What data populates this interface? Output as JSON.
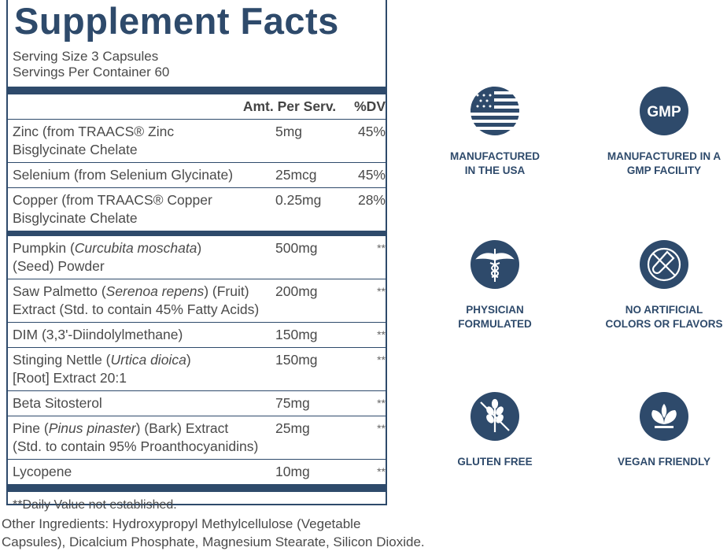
{
  "label": {
    "title": "Supplement Facts",
    "serving_size": "Serving Size 3 Capsules",
    "servings_per_container": "Servings Per Container 60",
    "header": {
      "amount": "Amt. Per Serv.",
      "dv": "%DV"
    },
    "groups": [
      [
        {
          "name": [
            [
              "Zinc (from TRAACS® Zinc"
            ],
            [
              "Bisglycinate Chelate"
            ]
          ],
          "amount": "5mg",
          "dv": "45%"
        },
        {
          "name": [
            [
              "Selenium (from Selenium Glycinate)"
            ]
          ],
          "amount": "25mcg",
          "dv": "45%"
        },
        {
          "name": [
            [
              "Copper (from TRAACS® Copper"
            ],
            [
              "Bisglycinate Chelate"
            ]
          ],
          "amount": "0.25mg",
          "dv": "28%"
        }
      ],
      [
        {
          "name": [
            [
              "Pumpkin (",
              "Curcubita moschata",
              ")"
            ],
            [
              "(Seed) Powder"
            ]
          ],
          "amount": "500mg",
          "dv": "**"
        },
        {
          "name": [
            [
              "Saw Palmetto (",
              "Serenoa repens",
              ") (Fruit)"
            ],
            [
              "Extract (Std. to contain 45% Fatty Acids)"
            ]
          ],
          "amount": "200mg",
          "dv": "**"
        },
        {
          "name": [
            [
              "DIM (3,3'-Diindolylmethane)"
            ]
          ],
          "amount": "150mg",
          "dv": "**"
        },
        {
          "name": [
            [
              "Stinging Nettle (",
              "Urtica dioica",
              ")"
            ],
            [
              "[Root] Extract 20:1"
            ]
          ],
          "amount": "150mg",
          "dv": "**"
        },
        {
          "name": [
            [
              "Beta Sitosterol"
            ]
          ],
          "amount": "75mg",
          "dv": "**"
        },
        {
          "name": [
            [
              "Pine (",
              "Pinus pinaster",
              ") (Bark) Extract"
            ],
            [
              "(Std. to contain 95% Proanthocyanidins)"
            ]
          ],
          "amount": "25mg",
          "dv": "**"
        },
        {
          "name": [
            [
              "Lycopene"
            ]
          ],
          "amount": "10mg",
          "dv": "**"
        }
      ]
    ],
    "footnote": "**Daily Value not established."
  },
  "other_ingredients": [
    "Other Ingredients: Hydroxypropyl Methylcellulose (Vegetable",
    "Capsules), Dicalcium Phosphate, Magnesium Stearate, Silicon Dioxide."
  ],
  "badges": [
    {
      "lines": [
        "MANUFACTURED",
        "IN THE USA"
      ]
    },
    {
      "icon_text": "GMP",
      "lines": [
        "MANUFACTURED IN A",
        "GMP FACILITY"
      ]
    },
    {
      "lines": [
        "PHYSICIAN",
        "FORMULATED"
      ]
    },
    {
      "lines": [
        "NO ARTIFICIAL",
        "COLORS OR FLAVORS"
      ]
    },
    {
      "lines": [
        "GLUTEN FREE"
      ]
    },
    {
      "lines": [
        "VEGAN FRIENDLY"
      ]
    }
  ]
}
